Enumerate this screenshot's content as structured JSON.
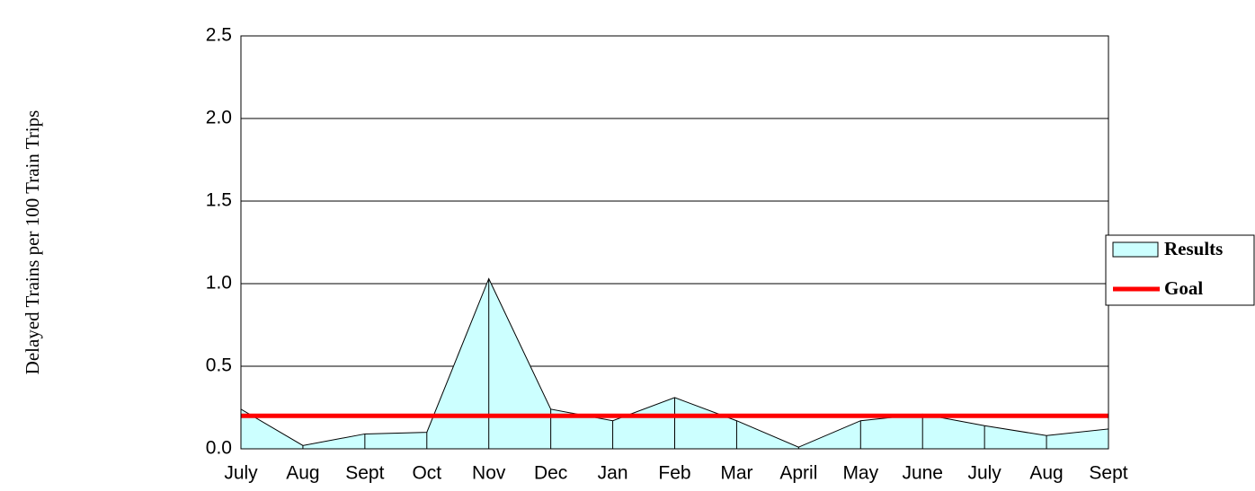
{
  "chart_data": {
    "type": "area",
    "y_label": "Delayed  Trains  per 100 Train Trips",
    "categories": [
      "July",
      "Aug",
      "Sept",
      "Oct",
      "Nov",
      "Dec",
      "Jan",
      "Feb",
      "Mar",
      "April",
      "May",
      "June",
      "July",
      "Aug",
      "Sept"
    ],
    "series": [
      {
        "name": "Results",
        "color": "#ccffff",
        "values": [
          0.24,
          0.02,
          0.09,
          0.1,
          1.03,
          0.24,
          0.17,
          0.31,
          0.17,
          0.01,
          0.17,
          0.21,
          0.14,
          0.08,
          0.12
        ]
      },
      {
        "name": "Goal",
        "color": "#ff0000",
        "values": [
          0.2,
          0.2,
          0.2,
          0.2,
          0.2,
          0.2,
          0.2,
          0.2,
          0.2,
          0.2,
          0.2,
          0.2,
          0.2,
          0.2,
          0.2
        ]
      }
    ],
    "ylim": [
      0,
      2.5
    ],
    "yticks": [
      {
        "value": 0,
        "label": "0.0"
      },
      0.5,
      {
        "value": 1,
        "label": "1.0"
      },
      1.5,
      {
        "value": 2,
        "label": "2.0"
      },
      2.5
    ],
    "grid": true,
    "legend": "right"
  }
}
